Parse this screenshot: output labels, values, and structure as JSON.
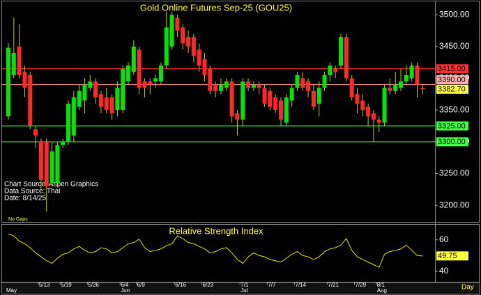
{
  "chart_data": [
    {
      "type": "candlestick",
      "title": "Gold Online Futures Sep-25 (GOU25)",
      "notes": [
        "Chart Source: Aspen Graphics",
        "Data Source: Thai",
        "Date:  8/14/25"
      ],
      "gaps_note": "No Gaps",
      "x_unit": "Day",
      "categories": [
        null,
        null,
        null,
        null,
        null,
        null,
        "5/13",
        null,
        null,
        null,
        "5/19",
        null,
        null,
        null,
        null,
        "5/26",
        null,
        null,
        null,
        null,
        null,
        "6/4",
        null,
        null,
        "6/9",
        null,
        null,
        null,
        null,
        null,
        null,
        "6/16",
        null,
        null,
        null,
        null,
        "6/23",
        null,
        null,
        null,
        null,
        null,
        null,
        "7/1",
        null,
        null,
        null,
        null,
        "7/7",
        null,
        null,
        null,
        null,
        "7/14",
        null,
        null,
        null,
        null,
        null,
        "7/21",
        null,
        null,
        null,
        null,
        "7/29",
        null,
        null,
        null,
        "8/1",
        null,
        null,
        null,
        null,
        null,
        null,
        null,
        null
      ],
      "months": [
        {
          "index": 0,
          "label": "May"
        },
        {
          "index": 21,
          "label": "Jun"
        },
        {
          "index": 43,
          "label": "Jul"
        },
        {
          "index": 68,
          "label": "Aug"
        }
      ],
      "open": [
        3340,
        3405,
        3450,
        3410,
        3405,
        3320,
        3300,
        3300,
        3235,
        3235,
        3295,
        3300,
        3310,
        3355,
        3365,
        3385,
        3395,
        3375,
        3370,
        3370,
        3350,
        3350,
        3395,
        3410,
        3445,
        3395,
        3395,
        3395,
        3395,
        3420,
        3450,
        3495,
        3480,
        3465,
        3465,
        3445,
        3430,
        3415,
        3390,
        3380,
        3385,
        3395,
        3345,
        3335,
        3395,
        3385,
        3390,
        3385,
        3380,
        3370,
        3365,
        3330,
        3365,
        3385,
        3400,
        3395,
        3380,
        3360,
        3385,
        3405,
        3415,
        3420,
        3465,
        3400,
        3375,
        3365,
        3355,
        3345,
        3335,
        3330,
        3385,
        3380,
        3385,
        3395,
        3400,
        3420,
        3385
      ],
      "high": [
        3455,
        3495,
        3485,
        3420,
        3410,
        3325,
        3305,
        3305,
        3300,
        3300,
        3305,
        3365,
        3380,
        3390,
        3400,
        3405,
        3400,
        3380,
        3385,
        3375,
        3395,
        3420,
        3425,
        3460,
        3450,
        3400,
        3400,
        3405,
        3425,
        3505,
        3505,
        3500,
        3485,
        3475,
        3470,
        3455,
        3440,
        3420,
        3395,
        3400,
        3400,
        3400,
        3350,
        3400,
        3400,
        3395,
        3395,
        3390,
        3385,
        3375,
        3370,
        3375,
        3390,
        3410,
        3410,
        3400,
        3390,
        3395,
        3410,
        3425,
        3420,
        3470,
        3470,
        3405,
        3385,
        3375,
        3360,
        3350,
        3340,
        3390,
        3400,
        3410,
        3415,
        3420,
        3425,
        3425,
        3390
      ],
      "low": [
        3335,
        3400,
        3400,
        3370,
        3320,
        3290,
        3225,
        3190,
        3230,
        3230,
        3290,
        3295,
        3300,
        3350,
        3345,
        3380,
        3360,
        3345,
        3345,
        3335,
        3340,
        3345,
        3390,
        3405,
        3375,
        3370,
        3375,
        3385,
        3390,
        3415,
        3445,
        3465,
        3445,
        3440,
        3425,
        3410,
        3395,
        3375,
        3370,
        3375,
        3380,
        3330,
        3310,
        3325,
        3380,
        3380,
        3375,
        3355,
        3350,
        3345,
        3325,
        3325,
        3355,
        3380,
        3380,
        3370,
        3350,
        3340,
        3380,
        3395,
        3400,
        3415,
        3395,
        3365,
        3345,
        3340,
        3325,
        3300,
        3315,
        3325,
        3375,
        3375,
        3380,
        3390,
        3395,
        3370,
        3375
      ],
      "close": [
        3448,
        3440,
        3405,
        3385,
        3325,
        3310,
        3240,
        3230,
        3285,
        3295,
        3300,
        3360,
        3370,
        3380,
        3390,
        3395,
        3370,
        3355,
        3350,
        3345,
        3385,
        3415,
        3420,
        3450,
        3385,
        3385,
        3390,
        3400,
        3420,
        3480,
        3500,
        3475,
        3455,
        3450,
        3435,
        3420,
        3405,
        3380,
        3380,
        3390,
        3395,
        3340,
        3335,
        3395,
        3385,
        3390,
        3385,
        3360,
        3355,
        3350,
        3335,
        3370,
        3385,
        3405,
        3385,
        3380,
        3355,
        3385,
        3405,
        3420,
        3410,
        3465,
        3400,
        3370,
        3360,
        3350,
        3340,
        3335,
        3330,
        3385,
        3380,
        3390,
        3395,
        3405,
        3420,
        3390,
        3383
      ],
      "up_color": "#00e600",
      "down_color": "#ff2828",
      "wick_color": "#c8c800",
      "ylim": [
        3175,
        3521
      ],
      "yticks": [
        {
          "value": 3200,
          "label": "3200.00"
        },
        {
          "value": 3250,
          "label": "3250.00"
        },
        {
          "value": 3300,
          "label": "3300.00"
        },
        {
          "value": 3350,
          "label": "3350.00"
        },
        {
          "value": 3400,
          "label": "3400.00"
        },
        {
          "value": 3450,
          "label": "3450.00"
        },
        {
          "value": 3500,
          "label": "3500.00"
        }
      ],
      "levels": [
        {
          "value": 3415,
          "label": "3415.00",
          "color": "#ff3030",
          "bg": "#ff3030"
        },
        {
          "value": 3390,
          "label": "3390.00",
          "color": "#ff9a9a",
          "bg": "#ffb0b0"
        },
        {
          "value": 3325,
          "label": "3325.00",
          "color": "#30ff30",
          "bg": "#40ff40"
        },
        {
          "value": 3300,
          "label": "3300.00",
          "color": "#30ff30",
          "bg": "#40ff40"
        }
      ],
      "last": {
        "value": 3382.7,
        "label": "3382.70",
        "bg": "#ffff40"
      }
    },
    {
      "type": "line",
      "title": "Relative Strength Index",
      "color": "#e6e600",
      "values": [
        63.8,
        62.5,
        59.2,
        57.5,
        55,
        51.7,
        49.2,
        46.7,
        45,
        48.3,
        50.8,
        51.7,
        54.2,
        55.8,
        53.3,
        51.7,
        52.5,
        55,
        54.2,
        51.7,
        52.5,
        55,
        57.5,
        58.3,
        60.4,
        55,
        52.5,
        53.3,
        54.2,
        56.3,
        57.5,
        62.5,
        60.8,
        58.3,
        57.5,
        55.8,
        54.2,
        51.7,
        52.5,
        54.2,
        55,
        51.7,
        47.5,
        45,
        49.2,
        51.7,
        50,
        49.2,
        47.5,
        46.7,
        45.8,
        48.3,
        50.8,
        52.5,
        50,
        49.2,
        47.5,
        49.2,
        52.5,
        54.2,
        55,
        56.7,
        60.8,
        53.3,
        49.2,
        47.5,
        45.8,
        44.2,
        42.5,
        50.8,
        52.5,
        53.3,
        54.2,
        56.7,
        53.3,
        50,
        49.75
      ],
      "ylim": [
        33.3,
        69.6
      ],
      "yticks": [
        40,
        60
      ],
      "last": {
        "value": 49.75,
        "label": "49.75",
        "bg": "#ffff40"
      }
    }
  ]
}
